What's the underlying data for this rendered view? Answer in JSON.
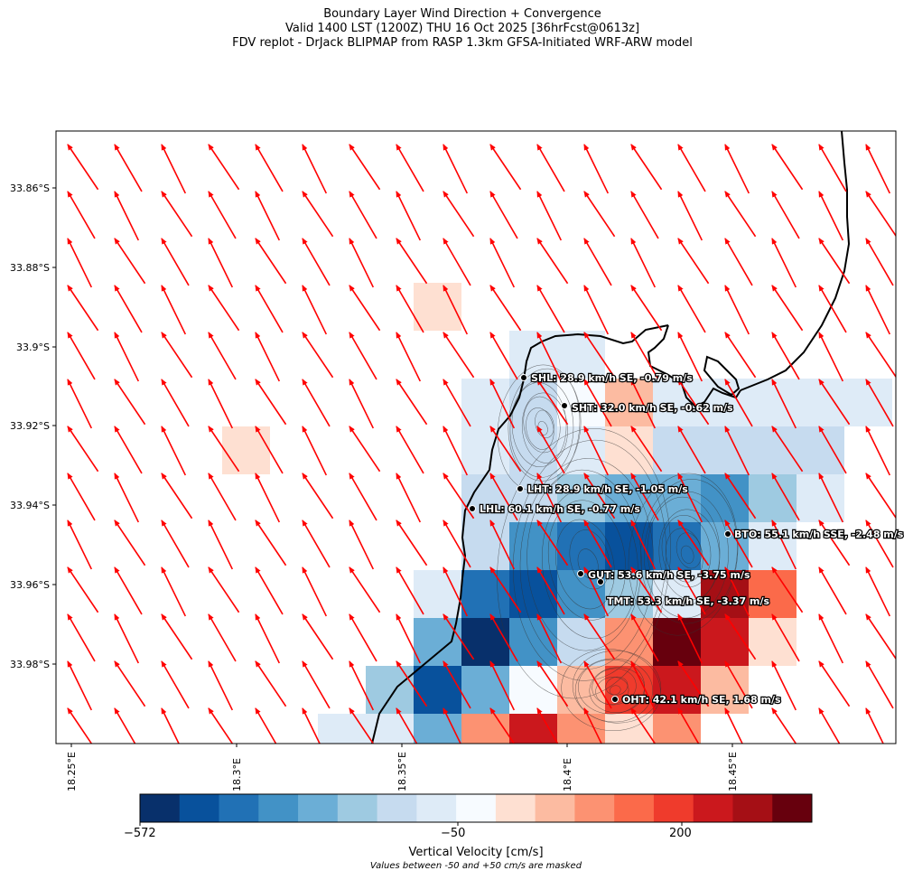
{
  "header": {
    "title_line1": "Boundary Layer Wind Direction + Convergence",
    "title_line2": "Valid 1400 LST (1200Z) THU 16 Oct 2025 [36hrFcst@0613z]",
    "title_line3": "FDV replot - DrJack BLIPMAP from RASP 1.3km GFSA-Initiated WRF-ARW model"
  },
  "axes": {
    "lat_ticks": [
      "33.86°S",
      "33.88°S",
      "33.9°S",
      "33.92°S",
      "33.94°S",
      "33.96°S",
      "33.98°S"
    ],
    "lon_ticks": [
      "18.25°E",
      "18.3°E",
      "18.35°E",
      "18.4°E",
      "18.45°E"
    ]
  },
  "stations": [
    {
      "id": "SHL",
      "label": "SHL: 28.9 km/h SE, -0.79 m/s"
    },
    {
      "id": "SHT",
      "label": "SHT: 32.0 km/h SE, -0.62 m/s"
    },
    {
      "id": "LHT",
      "label": "LHT: 28.9 km/h SE, -1.05 m/s"
    },
    {
      "id": "LHL",
      "label": "LHL: 60.1 km/h SE, -0.77 m/s"
    },
    {
      "id": "BTO",
      "label": "BTO: 55.1 km/h SSE, -2.48 m/s"
    },
    {
      "id": "GUT",
      "label": "GUT: 53.6 km/h SE, -3.75 m/s"
    },
    {
      "id": "TMT",
      "label": "TMT: 53.3 km/h SE, -3.37 m/s"
    },
    {
      "id": "OHT",
      "label": "OHT: 42.1 km/h SE, 1.68 m/s"
    }
  ],
  "colorbar": {
    "title": "Vertical Velocity [cm/s]",
    "note": "Values between -50 and +50 cm/s are masked",
    "tick_labels": [
      "−572",
      "−50",
      "200"
    ],
    "colors": [
      "#08306b",
      "#08519c",
      "#2171b5",
      "#4292c6",
      "#6baed6",
      "#9ecae1",
      "#c6dbef",
      "#deebf7",
      "#f7fbff",
      "#fee0d2",
      "#fcbba1",
      "#fc9272",
      "#fb6a4a",
      "#ef3b2c",
      "#cb181d",
      "#a50f15",
      "#67000d"
    ]
  },
  "wind": {
    "color": "#ff0000",
    "direction": "SE"
  }
}
